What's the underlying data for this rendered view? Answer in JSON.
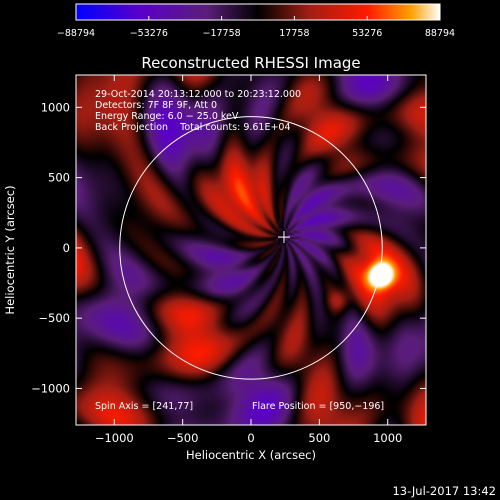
{
  "chart_data": {
    "type": "heatmap",
    "title": "Reconstructed RHESSI Image",
    "xlabel": "Heliocentric X (arcsec)",
    "ylabel": "Heliocentric Y (arcsec)",
    "xlim": [
      -1280,
      1280
    ],
    "ylim": [
      -1260,
      1230
    ],
    "x_ticks": [
      -1000,
      -500,
      0,
      500,
      1000
    ],
    "y_ticks": [
      1000,
      500,
      0,
      -500,
      -1000
    ],
    "x_tick_labels": [
      "−1000",
      "−500",
      "0",
      "500",
      "1000"
    ],
    "y_tick_labels": [
      "1000",
      "500",
      "0",
      "−500",
      "−1000"
    ],
    "colorbar": {
      "min": -88794,
      "max": 88794,
      "ticks": [
        -88794,
        -53276,
        -17758,
        17758,
        53276,
        88794
      ],
      "tick_labels": [
        "−88794",
        "−53276",
        "−17758",
        "17758",
        "53276",
        "88794"
      ],
      "colormap": [
        "#0000ff",
        "#5a00c8",
        "#5a1e78",
        "#000000",
        "#a01e14",
        "#ff1a00",
        "#ffa000",
        "#ffffff"
      ]
    },
    "info_lines": [
      "29-Oct-2014 20:13:12.000 to 20:23:12.000",
      "Detectors: 7F 8F 9F, Att 0",
      "Energy Range: 6.0 − 25.0 keV",
      "Back Projection    Total counts: 9.61E+04"
    ],
    "spin_axis_text": "Spin Axis = [241,77]",
    "flare_position_text": "Flare Position = [950,−196]",
    "spin_axis": [
      241,
      77
    ],
    "flare_position": [
      950,
      -196
    ],
    "solar_limb_radius": 960,
    "timestamp": "13-Jul-2017 13:42"
  }
}
